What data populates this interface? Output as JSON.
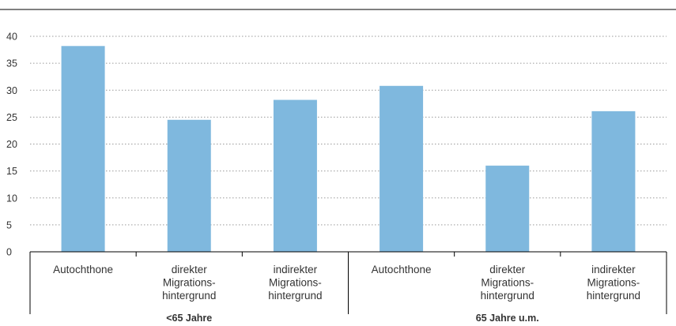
{
  "chart_data": {
    "type": "bar",
    "title": "",
    "xlabel": "",
    "ylabel": "",
    "ylim": [
      0,
      40
    ],
    "yticks": [
      0,
      5,
      10,
      15,
      20,
      25,
      30,
      35,
      40
    ],
    "grid": true,
    "groups": [
      {
        "label": "<65 Jahre",
        "bars": [
          {
            "category": [
              "Autochthone"
            ],
            "value": 38.2
          },
          {
            "category": [
              "direkter",
              "Migrations-",
              "hintergrund"
            ],
            "value": 24.5
          },
          {
            "category": [
              "indirekter",
              "Migrations-",
              "hintergrund"
            ],
            "value": 28.2
          }
        ]
      },
      {
        "label": "65 Jahre u.m.",
        "bars": [
          {
            "category": [
              "Autochthone"
            ],
            "value": 30.8
          },
          {
            "category": [
              "direkter",
              "Migrations-",
              "hintergrund"
            ],
            "value": 16.0
          },
          {
            "category": [
              "indirekter",
              "Migrations-",
              "hintergrund"
            ],
            "value": 26.1
          }
        ]
      }
    ],
    "colors": {
      "bar": "#7fb8de",
      "grid": "#9a9a9a",
      "axis": "#000000",
      "text": "#333333"
    }
  }
}
